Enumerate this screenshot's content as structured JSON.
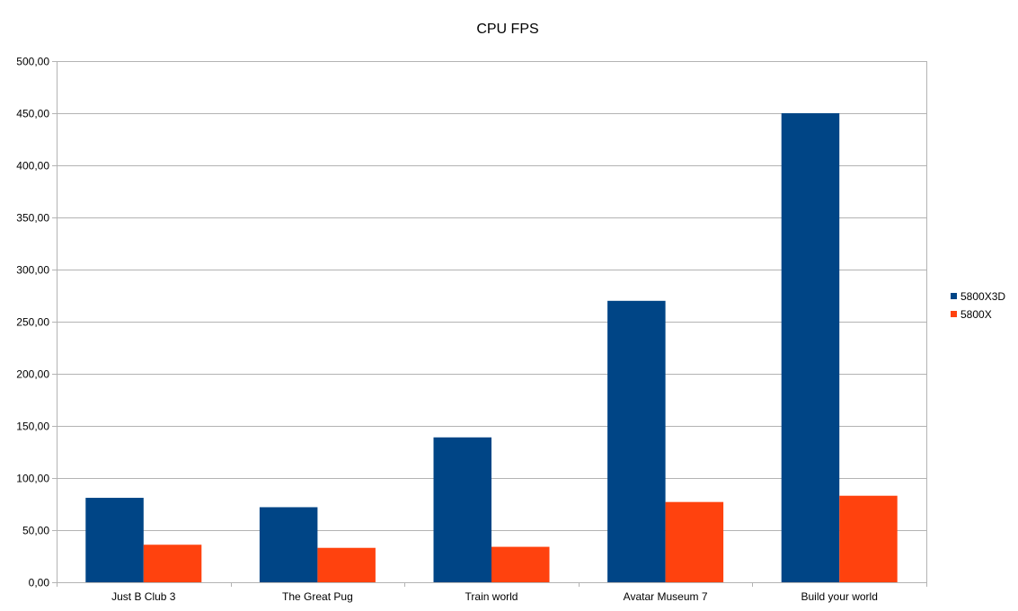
{
  "chart_data": {
    "type": "bar",
    "title": "CPU FPS",
    "xlabel": "",
    "ylabel": "",
    "categories": [
      "Just B Club 3",
      "The Great Pug",
      "Train world",
      "Avatar Museum 7",
      "Build your world"
    ],
    "series": [
      {
        "name": "5800X3D",
        "color": "#004586",
        "values": [
          81,
          72,
          139,
          270,
          450
        ]
      },
      {
        "name": "5800X",
        "color": "#ff420e",
        "values": [
          36,
          33,
          34,
          77,
          83
        ]
      }
    ],
    "ylim": [
      0,
      500
    ],
    "ytick_step": 50,
    "ytick_labels": [
      "0,00",
      "50,00",
      "100,00",
      "150,00",
      "200,00",
      "250,00",
      "300,00",
      "350,00",
      "400,00",
      "450,00",
      "500,00"
    ],
    "grid": true,
    "legend": "right"
  }
}
